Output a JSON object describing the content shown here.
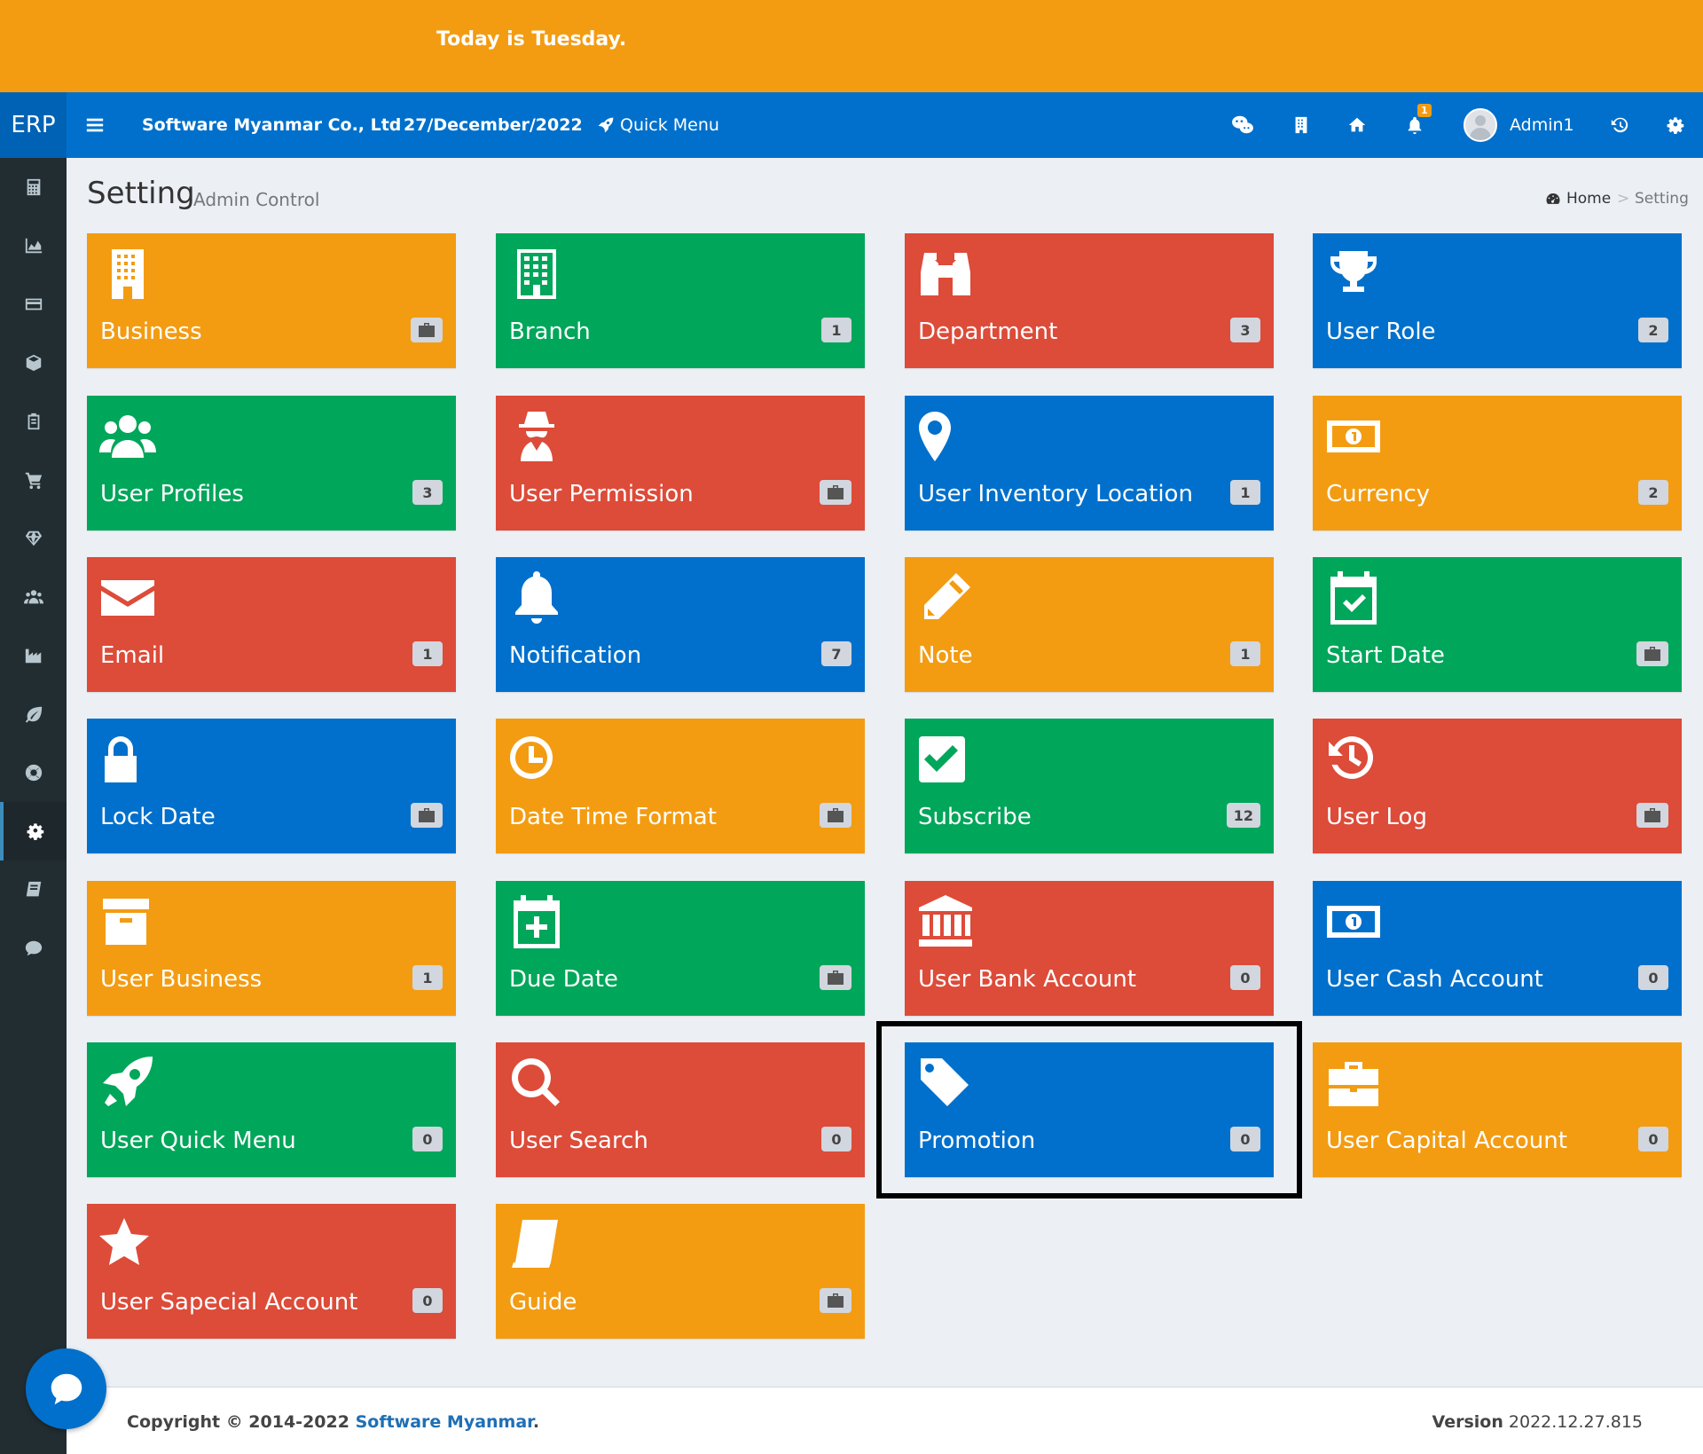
{
  "banner": {
    "text": "Today is Tuesday."
  },
  "topnav": {
    "brand": "ERP",
    "company": "Software Myanmar Co., Ltd",
    "date": "27/December/2022",
    "quick_menu": "Quick Menu",
    "notification_count": "1",
    "user": "Admin1",
    "icons": [
      "menu-icon",
      "rocket-icon",
      "wechat-icon",
      "building-icon",
      "home-icon",
      "bell-icon",
      "history-icon",
      "gear-icon"
    ]
  },
  "sidebar": {
    "items": [
      "calculator",
      "area-chart",
      "credit-card",
      "cube",
      "clipboard",
      "cart",
      "diamond",
      "users",
      "industry",
      "leaf",
      "support",
      "gear",
      "book",
      "comment"
    ],
    "active": "gear"
  },
  "header": {
    "title": "Setting",
    "subtitle": "Admin Control"
  },
  "breadcrumb": {
    "home": "Home",
    "current": "Setting"
  },
  "tiles": [
    {
      "label": "Business",
      "badge": "",
      "badge_icon": "briefcase",
      "color": "#f39c12",
      "icon": "building-icon"
    },
    {
      "label": "Branch",
      "badge": "1",
      "color": "#00a65a",
      "icon": "office-building-icon"
    },
    {
      "label": "Department",
      "badge": "3",
      "color": "#dd4b39",
      "icon": "binoculars-icon"
    },
    {
      "label": "User Role",
      "badge": "2",
      "color": "#0070cc",
      "icon": "trophy-icon"
    },
    {
      "label": "User Profiles",
      "badge": "3",
      "color": "#00a65a",
      "icon": "users-icon"
    },
    {
      "label": "User Permission",
      "badge": "",
      "badge_icon": "briefcase",
      "color": "#dd4b39",
      "icon": "user-secret-icon"
    },
    {
      "label": "User Inventory Location",
      "badge": "1",
      "color": "#0070cc",
      "icon": "map-marker-icon"
    },
    {
      "label": "Currency",
      "badge": "2",
      "color": "#f39c12",
      "icon": "money-icon"
    },
    {
      "label": "Email",
      "badge": "1",
      "color": "#dd4b39",
      "icon": "envelope-icon"
    },
    {
      "label": "Notification",
      "badge": "7",
      "color": "#0070cc",
      "icon": "bell-icon"
    },
    {
      "label": "Note",
      "badge": "1",
      "color": "#f39c12",
      "icon": "pencil-icon"
    },
    {
      "label": "Start Date",
      "badge": "",
      "badge_icon": "briefcase",
      "color": "#00a65a",
      "icon": "calendar-check-icon"
    },
    {
      "label": "Lock Date",
      "badge": "",
      "badge_icon": "briefcase",
      "color": "#0070cc",
      "icon": "lock-icon"
    },
    {
      "label": "Date Time Format",
      "badge": "",
      "badge_icon": "briefcase",
      "color": "#f39c12",
      "icon": "clock-icon"
    },
    {
      "label": "Subscribe",
      "badge": "12",
      "color": "#00a65a",
      "icon": "check-square-icon"
    },
    {
      "label": "User Log",
      "badge": "",
      "badge_icon": "briefcase",
      "color": "#dd4b39",
      "icon": "history-icon"
    },
    {
      "label": "User Business",
      "badge": "1",
      "color": "#f39c12",
      "icon": "archive-icon"
    },
    {
      "label": "Due Date",
      "badge": "",
      "badge_icon": "briefcase",
      "color": "#00a65a",
      "icon": "calendar-plus-icon"
    },
    {
      "label": "User Bank Account",
      "badge": "0",
      "color": "#dd4b39",
      "icon": "bank-icon"
    },
    {
      "label": "User Cash Account",
      "badge": "0",
      "color": "#0070cc",
      "icon": "money-icon"
    },
    {
      "label": "User Quick Menu",
      "badge": "0",
      "color": "#00a65a",
      "icon": "rocket-icon"
    },
    {
      "label": "User Search",
      "badge": "0",
      "color": "#dd4b39",
      "icon": "search-icon"
    },
    {
      "label": "Promotion",
      "badge": "0",
      "color": "#0070cc",
      "icon": "tag-icon"
    },
    {
      "label": "User Capital Account",
      "badge": "0",
      "color": "#f39c12",
      "icon": "briefcase-icon"
    },
    {
      "label": "User Sapecial Account",
      "badge": "0",
      "color": "#dd4b39",
      "icon": "star-icon"
    },
    {
      "label": "Guide",
      "badge": "",
      "badge_icon": "briefcase",
      "color": "#f39c12",
      "icon": "book-icon"
    }
  ],
  "footer": {
    "copyright_prefix": "Copyright © 2014-2022",
    "copyright_link": "Software Myanmar",
    "copyright_suffix": ".",
    "version_label": "Version",
    "version_value": "2022.12.27.815"
  }
}
